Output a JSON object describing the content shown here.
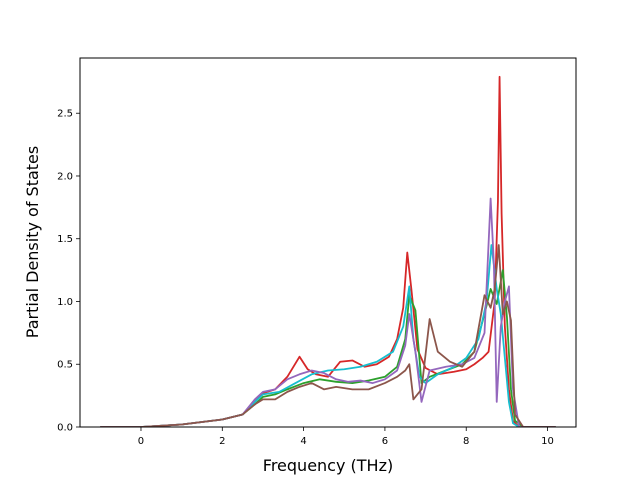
{
  "chart_data": {
    "type": "line",
    "title": "",
    "xlabel": "Frequency (THz)",
    "ylabel": "Partial Density of States",
    "xlim": [
      -1.5,
      10.7
    ],
    "ylim": [
      0.0,
      2.94
    ],
    "xticks": [
      0,
      2,
      4,
      6,
      8,
      10
    ],
    "yticks": [
      0.0,
      0.5,
      1.0,
      1.5,
      2.0,
      2.5
    ],
    "xtick_labels": [
      "0",
      "2",
      "4",
      "6",
      "8",
      "10"
    ],
    "ytick_labels": [
      "0.0",
      "0.5",
      "1.0",
      "1.5",
      "2.0",
      "2.5"
    ],
    "grid": false,
    "legend": "none",
    "series": [
      {
        "color": "#d62728",
        "x": [
          -1.0,
          0.0,
          1.0,
          2.0,
          2.5,
          2.8,
          3.0,
          3.3,
          3.6,
          3.9,
          4.1,
          4.3,
          4.6,
          4.9,
          5.2,
          5.5,
          5.8,
          6.1,
          6.3,
          6.45,
          6.55,
          6.65,
          6.8,
          7.0,
          7.3,
          7.7,
          8.0,
          8.2,
          8.4,
          8.55,
          8.7,
          8.78,
          8.82,
          8.87,
          8.95,
          9.05,
          9.15,
          9.3,
          9.6,
          10.2
        ],
        "values": [
          0.0,
          0.0,
          0.02,
          0.06,
          0.1,
          0.2,
          0.27,
          0.3,
          0.4,
          0.56,
          0.46,
          0.42,
          0.4,
          0.52,
          0.53,
          0.48,
          0.5,
          0.56,
          0.7,
          0.95,
          1.39,
          1.1,
          0.62,
          0.47,
          0.42,
          0.44,
          0.46,
          0.5,
          0.55,
          0.6,
          1.0,
          1.8,
          2.79,
          1.7,
          0.8,
          0.3,
          0.05,
          0.0,
          0.0,
          0.0
        ]
      },
      {
        "color": "#2ca02c",
        "x": [
          -1.0,
          0.0,
          1.0,
          2.0,
          2.5,
          2.8,
          3.0,
          3.3,
          3.6,
          4.0,
          4.4,
          4.8,
          5.2,
          5.6,
          6.0,
          6.3,
          6.5,
          6.6,
          6.75,
          6.9,
          7.1,
          7.5,
          7.9,
          8.2,
          8.45,
          8.6,
          8.75,
          8.9,
          9.0,
          9.1,
          9.2,
          9.4,
          10.2
        ],
        "values": [
          0.0,
          0.0,
          0.02,
          0.06,
          0.1,
          0.18,
          0.24,
          0.26,
          0.3,
          0.35,
          0.38,
          0.36,
          0.35,
          0.37,
          0.4,
          0.48,
          0.7,
          1.05,
          0.93,
          0.35,
          0.4,
          0.45,
          0.5,
          0.6,
          0.9,
          1.1,
          0.98,
          1.25,
          0.88,
          0.3,
          0.05,
          0.0,
          0.0
        ]
      },
      {
        "color": "#17becf",
        "x": [
          -1.0,
          0.0,
          1.0,
          2.0,
          2.5,
          2.8,
          3.0,
          3.4,
          3.8,
          4.2,
          4.6,
          5.0,
          5.4,
          5.8,
          6.2,
          6.45,
          6.6,
          6.7,
          6.85,
          7.0,
          7.3,
          7.7,
          8.0,
          8.3,
          8.5,
          8.62,
          8.75,
          8.85,
          8.95,
          9.05,
          9.15,
          9.3,
          10.2
        ],
        "values": [
          0.0,
          0.0,
          0.02,
          0.06,
          0.1,
          0.2,
          0.26,
          0.28,
          0.35,
          0.42,
          0.45,
          0.46,
          0.48,
          0.52,
          0.6,
          0.8,
          1.12,
          0.7,
          0.4,
          0.35,
          0.42,
          0.48,
          0.55,
          0.7,
          1.0,
          1.45,
          1.1,
          0.9,
          0.55,
          0.2,
          0.03,
          0.0,
          0.0
        ]
      },
      {
        "color": "#9467bd",
        "x": [
          -1.0,
          0.0,
          1.0,
          2.0,
          2.5,
          2.8,
          3.0,
          3.3,
          3.6,
          3.9,
          4.2,
          4.5,
          4.8,
          5.1,
          5.4,
          5.7,
          6.0,
          6.3,
          6.5,
          6.6,
          6.75,
          6.9,
          7.1,
          7.5,
          7.9,
          8.2,
          8.45,
          8.6,
          8.68,
          8.75,
          8.85,
          8.95,
          9.05,
          9.15,
          9.3,
          10.2
        ],
        "values": [
          0.0,
          0.0,
          0.02,
          0.06,
          0.1,
          0.22,
          0.28,
          0.3,
          0.38,
          0.42,
          0.45,
          0.43,
          0.38,
          0.36,
          0.37,
          0.35,
          0.38,
          0.45,
          0.65,
          0.9,
          0.6,
          0.2,
          0.45,
          0.48,
          0.5,
          0.55,
          0.75,
          1.82,
          1.3,
          0.2,
          0.8,
          1.0,
          1.12,
          0.3,
          0.0,
          0.0
        ]
      },
      {
        "color": "#8c564b",
        "x": [
          -1.0,
          0.0,
          1.0,
          2.0,
          2.5,
          2.8,
          3.0,
          3.3,
          3.6,
          3.9,
          4.2,
          4.5,
          4.8,
          5.2,
          5.6,
          6.0,
          6.3,
          6.5,
          6.6,
          6.7,
          6.9,
          7.1,
          7.3,
          7.6,
          7.9,
          8.2,
          8.45,
          8.6,
          8.7,
          8.8,
          8.9,
          9.0,
          9.1,
          9.2,
          9.4,
          10.2
        ],
        "values": [
          0.0,
          0.0,
          0.02,
          0.06,
          0.1,
          0.18,
          0.22,
          0.22,
          0.28,
          0.32,
          0.35,
          0.3,
          0.32,
          0.3,
          0.3,
          0.35,
          0.4,
          0.45,
          0.5,
          0.22,
          0.3,
          0.86,
          0.6,
          0.52,
          0.48,
          0.6,
          1.05,
          0.95,
          1.1,
          1.45,
          0.9,
          1.0,
          0.85,
          0.1,
          0.0,
          0.0
        ]
      }
    ]
  }
}
